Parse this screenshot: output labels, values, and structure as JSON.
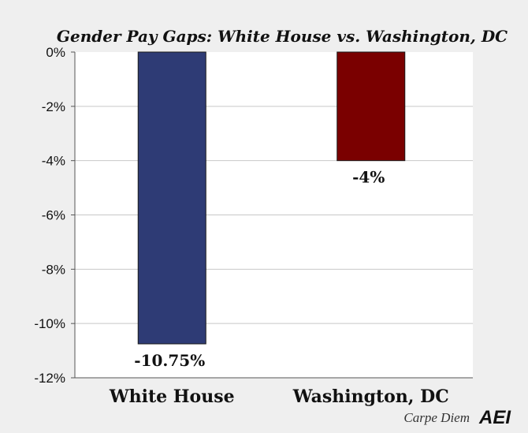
{
  "chart_data": {
    "type": "bar",
    "title": "Gender Pay Gaps: White House vs. Washington, DC",
    "categories": [
      "White House",
      "Washington, DC"
    ],
    "values": [
      -10.75,
      -4
    ],
    "value_labels": [
      "-10.75%",
      "-4%"
    ],
    "bar_colors": [
      "#2e3b75",
      "#7a0000"
    ],
    "ylim": [
      -12,
      0
    ],
    "yticks": [
      0,
      -2,
      -4,
      -6,
      -8,
      -10,
      -12
    ],
    "ytick_labels": [
      "0%",
      "-2%",
      "-4%",
      "-6%",
      "-8%",
      "-10%",
      "-12%"
    ],
    "grid": true,
    "legend": "none"
  },
  "branding": {
    "blog": "Carpe Diem",
    "logo": "AEI"
  }
}
